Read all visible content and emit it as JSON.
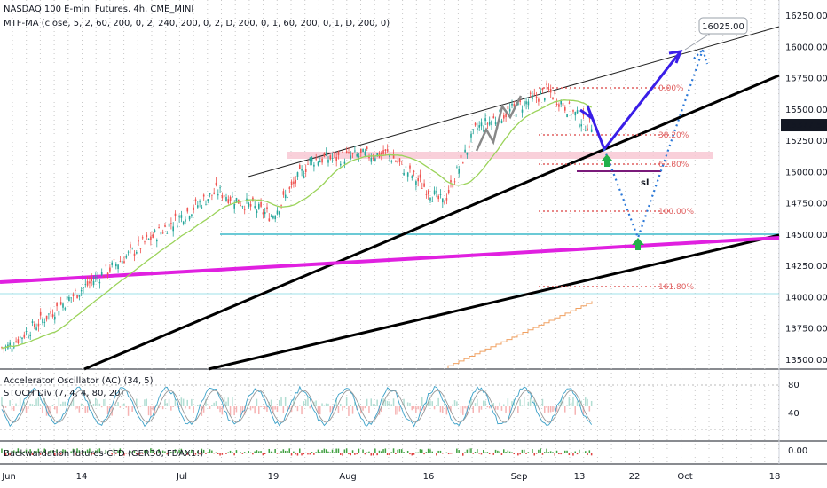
{
  "header": {
    "title": "NASDAQ 100 E-mini Futures, 4h, CME_MINI",
    "ma_line": "MTF-MA (close, 5, 2, 60, 200, 0, 2, 240, 200, 0, 2, D, 200, 0, 1, 60, 200, 0, 1, D, 200, 0)"
  },
  "indicators": {
    "ac_label": "Accelerator Oscillator (AC) (34, 5)",
    "stoch_label": "STOCH Div (7, 4, 4, 80, 20)",
    "backwardation_label": "Backwardation futures-CFD (GER30, FDAX1!)"
  },
  "price_axis": {
    "ticks": [
      "16250.00",
      "16000.00",
      "15750.00",
      "15500.00",
      "15250.00",
      "15000.00",
      "14750.00",
      "14500.00",
      "14250.00",
      "14000.00",
      "13750.00",
      "13500.00"
    ],
    "current_price": "15377.50",
    "callout_price": "16025.00"
  },
  "osc_axis": {
    "ticks": [
      "80",
      "40"
    ]
  },
  "back_axis": {
    "ticks": [
      "0.00"
    ]
  },
  "time_axis": {
    "ticks": [
      "Jun",
      "14",
      "Jul",
      "19",
      "Aug",
      "16",
      "Sep",
      "13",
      "22",
      "Oct",
      "18"
    ]
  },
  "fib_levels": [
    "0.00%",
    "38.20%",
    "61.80%",
    "100.00%",
    "161.80%"
  ],
  "sl_label": "sl",
  "colors": {
    "price_up": "#26a69a",
    "price_down": "#ef5350",
    "ma": "#9bd35a",
    "magenta": "#e020e0",
    "blue_path": "#3a1ee8",
    "dotted_path": "#2a78d8",
    "fib": "#e06060",
    "zone": "#f8c8d4",
    "cyan": "#3ab8c8",
    "green_arrow": "#22b04a",
    "purple": "#7a1a7a"
  },
  "chart_data": {
    "type": "candlestick",
    "ylim": [
      13500,
      16300
    ],
    "current_price": 15377.5,
    "target_price": 16025,
    "fib_retracement": {
      "0.00%": 15680,
      "38.20%": 15350,
      "61.80%": 15120,
      "100.00%": 14730,
      "161.80%": 14150
    },
    "key_levels": {
      "support_cyan": 14540,
      "lower_cyan": 14080,
      "resistance_zone": [
        15170,
        15220
      ]
    },
    "price_path_waypoints": [
      {
        "date": "2021-06-01",
        "close": 13600
      },
      {
        "date": "2021-06-14",
        "close": 14050
      },
      {
        "date": "2021-07-01",
        "close": 14600
      },
      {
        "date": "2021-07-09",
        "close": 14850
      },
      {
        "date": "2021-07-19",
        "close": 14650
      },
      {
        "date": "2021-07-26",
        "close": 15100
      },
      {
        "date": "2021-08-09",
        "close": 15150
      },
      {
        "date": "2021-08-19",
        "close": 14750
      },
      {
        "date": "2021-08-25",
        "close": 15350
      },
      {
        "date": "2021-09-07",
        "close": 15650
      },
      {
        "date": "2021-09-14",
        "close": 15380
      }
    ]
  }
}
